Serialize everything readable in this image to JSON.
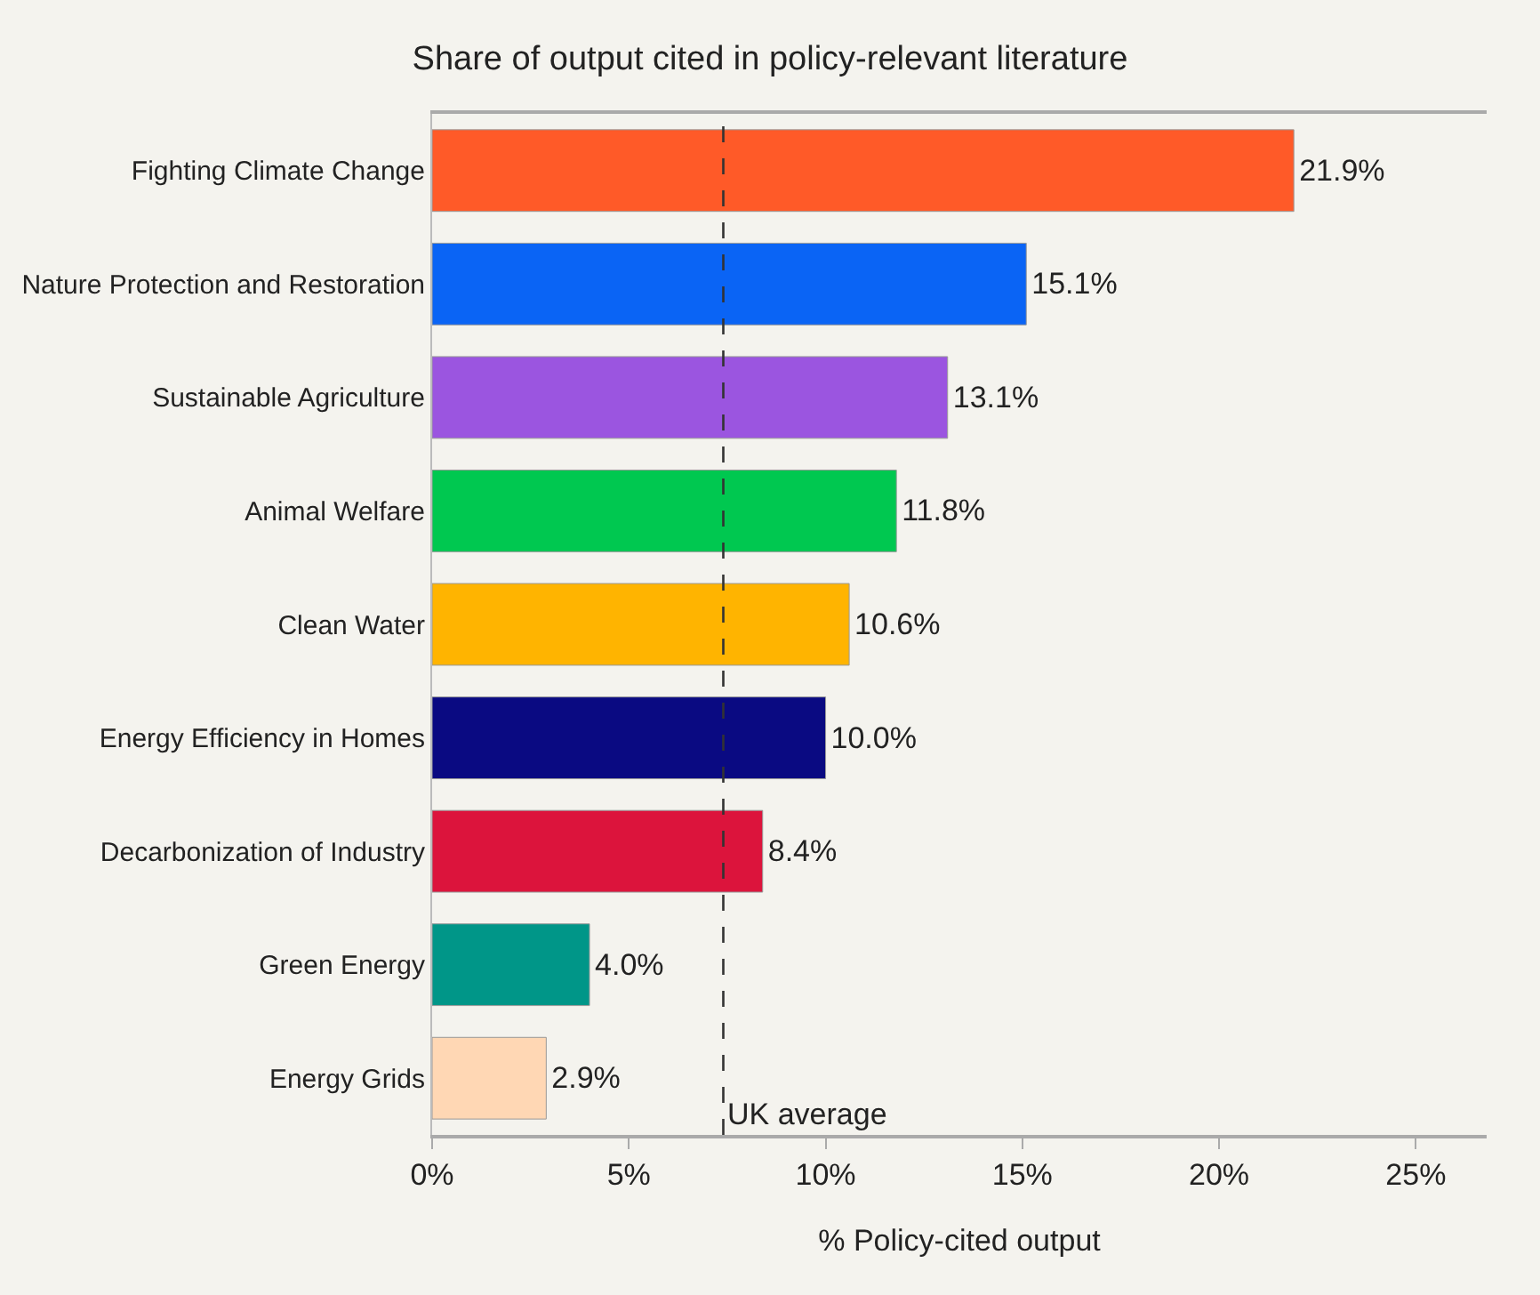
{
  "chart_data": {
    "type": "bar",
    "orientation": "horizontal",
    "title": "Share of output cited in policy-relevant literature",
    "xlabel": "% Policy-cited output",
    "categories": [
      "Fighting Climate Change",
      "Nature Protection and Restoration",
      "Sustainable Agriculture",
      "Animal Welfare",
      "Clean Water",
      "Energy Efficiency in Homes",
      "Decarbonization of Industry",
      "Green Energy",
      "Energy Grids"
    ],
    "values": [
      21.9,
      15.1,
      13.1,
      11.8,
      10.6,
      10.0,
      8.4,
      4.0,
      2.9
    ],
    "colors": [
      "#ff5a28",
      "#0a64f5",
      "#9b55e0",
      "#00c850",
      "#ffb400",
      "#0a0a82",
      "#dc143c",
      "#009688",
      "#ffd7b4"
    ],
    "value_labels": [
      "21.9%",
      "15.1%",
      "13.1%",
      "11.8%",
      "10.6%",
      "10.0%",
      "8.4%",
      "4.0%",
      "2.9%"
    ],
    "xlim": [
      0,
      26.8
    ],
    "xticks": [
      {
        "value": 0,
        "label": "0%"
      },
      {
        "value": 5,
        "label": "5%"
      },
      {
        "value": 10,
        "label": "10%"
      },
      {
        "value": 15,
        "label": "15%"
      },
      {
        "value": 20,
        "label": "20%"
      },
      {
        "value": 25,
        "label": "25%"
      }
    ],
    "ref_lines": [
      {
        "axis": "x",
        "value": 7.4,
        "label": "UK average",
        "color": "#333333",
        "line_style": "dashed"
      }
    ],
    "grid": false,
    "legend": false
  }
}
